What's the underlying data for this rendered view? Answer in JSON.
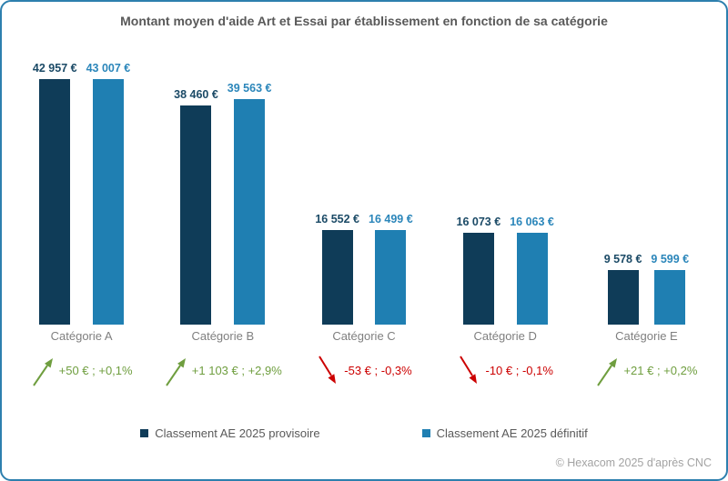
{
  "title": "Montant moyen d'aide Art et Essai par établissement en fonction de sa catégorie",
  "footer": "© Hexacom 2025 d'après CNC",
  "colors": {
    "provisoire_bar": "#0f3c58",
    "provisoire_label": "#1b4a66",
    "definitif_bar": "#1f7fb2",
    "definitif_label": "#2b86ba",
    "positive": "#6f9e3f",
    "negative": "#cc0000",
    "title_text": "#595959",
    "category_text": "#7f7f7f",
    "frame_border": "#2d7fae"
  },
  "legend": [
    {
      "key": "provisoire",
      "label": "Classement AE 2025 provisoire",
      "color": "#0f3c58"
    },
    {
      "key": "definitif",
      "label": "Classement AE 2025 définitif",
      "color": "#1f7fb2"
    }
  ],
  "chart_data": {
    "type": "bar",
    "title": "Montant moyen d'aide Art et Essai par établissement en fonction de sa catégorie",
    "categories": [
      "Catégorie A",
      "Catégorie B",
      "Catégorie C",
      "Catégorie D",
      "Catégorie E"
    ],
    "series": [
      {
        "key": "provisoire",
        "name": "Classement AE 2025 provisoire",
        "color": "#0f3c58",
        "label_color": "#1b4a66",
        "values": [
          42957,
          38460,
          16552,
          16073,
          9578
        ],
        "labels": [
          "42 957 €",
          "38 460 €",
          "16 552 €",
          "16 073 €",
          "9 578 €"
        ]
      },
      {
        "key": "definitif",
        "name": "Classement AE 2025 définitif",
        "color": "#1f7fb2",
        "label_color": "#2b86ba",
        "values": [
          43007,
          39563,
          16499,
          16063,
          9599
        ],
        "labels": [
          "43 007 €",
          "39 563 €",
          "16 499 €",
          "16 063 €",
          "9 599 €"
        ]
      }
    ],
    "changes": [
      {
        "label": "+50 € ; +0,1%",
        "direction": "up"
      },
      {
        "label": "+1 103 € ; +2,9%",
        "direction": "up"
      },
      {
        "label": "-53 € ; -0,3%",
        "direction": "down"
      },
      {
        "label": "-10 € ; -0,1%",
        "direction": "down"
      },
      {
        "label": "+21 € ; +0,2%",
        "direction": "up"
      }
    ],
    "ylim": [
      0,
      45000
    ],
    "grid": false,
    "xlabel": "",
    "ylabel": "",
    "legend_position": "bottom"
  }
}
